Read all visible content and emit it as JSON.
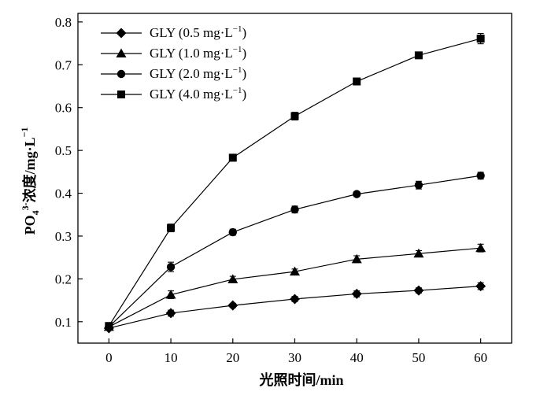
{
  "chart_data": {
    "type": "line",
    "title": "",
    "xlabel": "光照时间/min",
    "ylabel_main": "PO",
    "ylabel_sub": "4",
    "ylabel_sup": "3-",
    "ylabel_rest": "浓度/mg·L",
    "ylabel_rest_sup": "−1",
    "xlim": [
      -5,
      65
    ],
    "ylim": [
      0.05,
      0.82
    ],
    "xticks": [
      0,
      10,
      20,
      30,
      40,
      50,
      60
    ],
    "yticks": [
      0.1,
      0.2,
      0.3,
      0.4,
      0.5,
      0.6,
      0.7,
      0.8
    ],
    "ytick_labels": [
      "0.1",
      "0.2",
      "0.3",
      "0.4",
      "0.5",
      "0.6",
      "0.7",
      "0.8"
    ],
    "grid": false,
    "legend_position": "top-left",
    "x": [
      0,
      10,
      20,
      30,
      40,
      50,
      60
    ],
    "series": [
      {
        "name": "GLY (0.5 mg·L",
        "name_sup": "−1",
        "name_end": ")",
        "marker": "diamond",
        "values": [
          0.085,
          0.12,
          0.138,
          0.153,
          0.165,
          0.173,
          0.183
        ],
        "errors": [
          0.005,
          0.007,
          0.005,
          0.006,
          0.007,
          0.006,
          0.008
        ]
      },
      {
        "name": "GLY (1.0 mg·L",
        "name_sup": "−1",
        "name_end": ")",
        "marker": "triangle",
        "values": [
          0.088,
          0.163,
          0.199,
          0.217,
          0.246,
          0.259,
          0.272
        ],
        "errors": [
          0.005,
          0.009,
          0.007,
          0.006,
          0.008,
          0.007,
          0.009
        ]
      },
      {
        "name": "GLY (2.0 mg·L",
        "name_sup": "−1",
        "name_end": ")",
        "marker": "circle",
        "values": [
          0.088,
          0.228,
          0.309,
          0.362,
          0.398,
          0.419,
          0.441
        ],
        "errors": [
          0.005,
          0.011,
          0.007,
          0.008,
          0.006,
          0.009,
          0.008
        ]
      },
      {
        "name": "GLY (4.0 mg·L",
        "name_sup": "−1",
        "name_end": ")",
        "marker": "square",
        "values": [
          0.09,
          0.319,
          0.483,
          0.58,
          0.661,
          0.722,
          0.761
        ],
        "errors": [
          0.005,
          0.009,
          0.008,
          0.009,
          0.005,
          0.006,
          0.012
        ]
      }
    ]
  }
}
